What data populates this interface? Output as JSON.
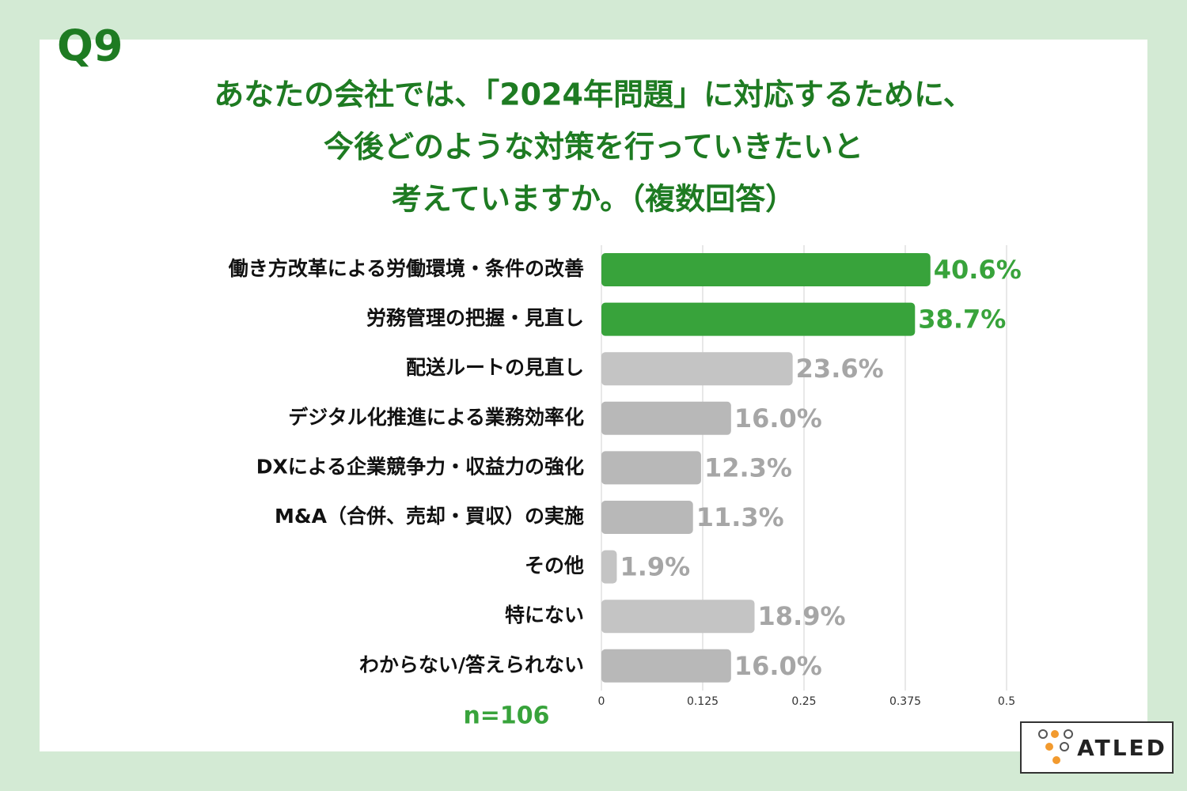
{
  "chart_data": {
    "type": "bar",
    "orientation": "horizontal",
    "question_label": "Q9",
    "title_lines": [
      "あなたの会社では、「2024年問題」に対応するために、",
      "今後どのような対策を行っていきたいと",
      "考えていますか。（複数回答）"
    ],
    "categories": [
      "働き方改革による労働環境・条件の改善",
      "労務管理の把握・見直し",
      "配送ルートの見直し",
      "デジタル化推進による業務効率化",
      "DXによる企業競争力・収益力の強化",
      "M&A（合併、売却・買収）の実施",
      "その他",
      "特にない",
      "わからない/答えられない"
    ],
    "values": [
      0.406,
      0.387,
      0.236,
      0.16,
      0.123,
      0.113,
      0.019,
      0.189,
      0.16
    ],
    "value_labels": [
      "40.6%",
      "38.7%",
      "23.6%",
      "16.0%",
      "12.3%",
      "11.3%",
      "1.9%",
      "18.9%",
      "16.0%"
    ],
    "colors": [
      "#38a33b",
      "#38a33b",
      "#c4c4c4",
      "#b8b8b8",
      "#b8b8b8",
      "#b8b8b8",
      "#c4c4c4",
      "#c4c4c4",
      "#b8b8b8"
    ],
    "value_label_colors": [
      "#38a33b",
      "#38a33b",
      "#a6a6a6",
      "#a6a6a6",
      "#a6a6a6",
      "#a6a6a6",
      "#a6a6a6",
      "#a6a6a6",
      "#a6a6a6"
    ],
    "xlim": [
      0,
      0.5
    ],
    "xticks": [
      0,
      0.125,
      0.25,
      0.375,
      0.5
    ],
    "grid": true,
    "note": "n=106",
    "logo_text": "ATLED"
  }
}
